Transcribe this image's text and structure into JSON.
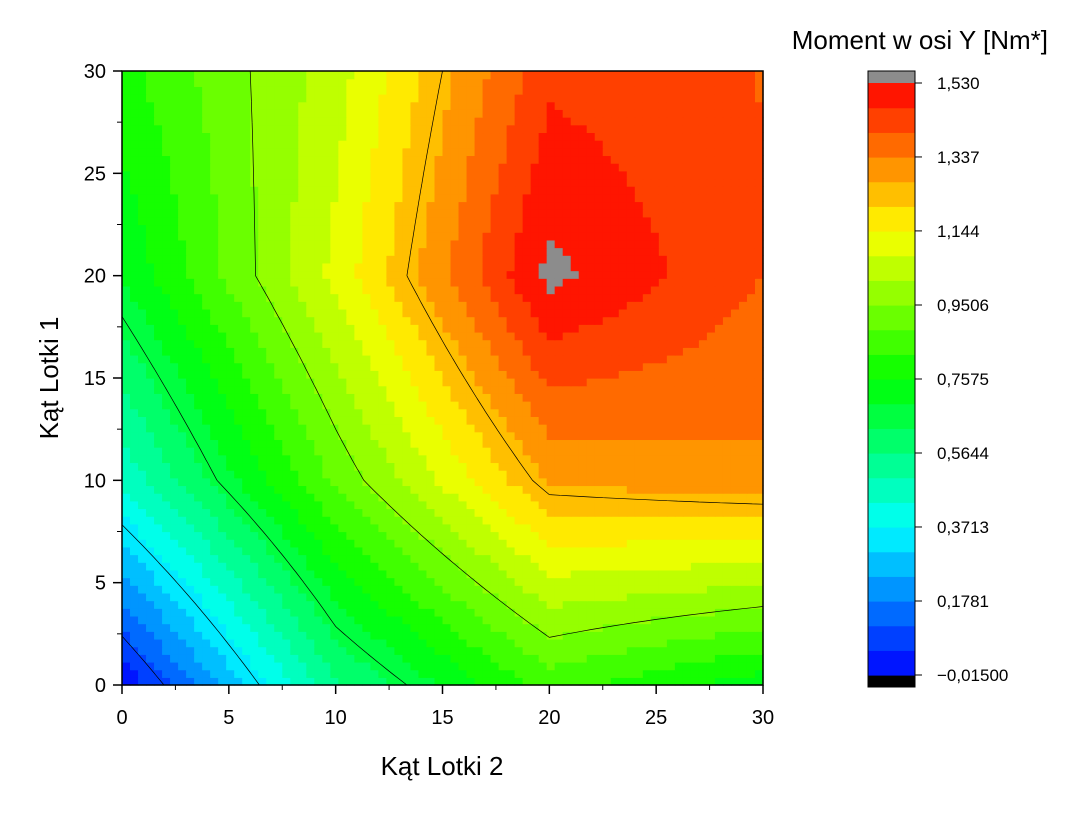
{
  "chart_data": {
    "type": "heatmap",
    "subtype": "filled-contour",
    "title": "",
    "xlabel": "Kąt Lotki 2",
    "ylabel": "Kąt Lotki 1",
    "xlim": [
      0,
      30
    ],
    "ylim": [
      0,
      30
    ],
    "x_ticks": [
      "0",
      "5",
      "10",
      "15",
      "20",
      "25",
      "30"
    ],
    "y_ticks": [
      "0",
      "5",
      "10",
      "15",
      "20",
      "25",
      "30"
    ],
    "x": [
      0,
      10,
      20,
      30
    ],
    "y": [
      0,
      10,
      20,
      30
    ],
    "z": [
      [
        -0.01,
        0.55,
        0.85,
        0.72
      ],
      [
        0.45,
        0.9,
        1.28,
        1.32
      ],
      [
        0.7,
        1.1,
        1.55,
        1.4
      ],
      [
        0.8,
        1.05,
        1.45,
        1.4
      ]
    ],
    "z_grid_note_removed": true,
    "contour_levels": [
      0.1,
      0.35,
      0.65,
      0.95,
      1.25
    ],
    "colorbar": {
      "title": "Moment w osi Y [Nm*]",
      "min": -0.015,
      "max": 1.53,
      "tick_values": [
        1.53,
        1.337,
        1.144,
        0.9506,
        0.7575,
        0.5644,
        0.3713,
        0.1781,
        -0.015
      ],
      "tick_labels": [
        "1,530",
        "1,337",
        "1,144",
        "0,9506",
        "0,7575",
        "0,5644",
        "0,3713",
        "0,1781",
        "−0,01500"
      ],
      "over_color": "#8c8c8c",
      "under_color": "#000000"
    },
    "colormap": [
      "#0000ff",
      "#00ffff",
      "#00ff00",
      "#ffff00",
      "#ff0000"
    ],
    "grid": false,
    "legend": "colorbar-right"
  }
}
